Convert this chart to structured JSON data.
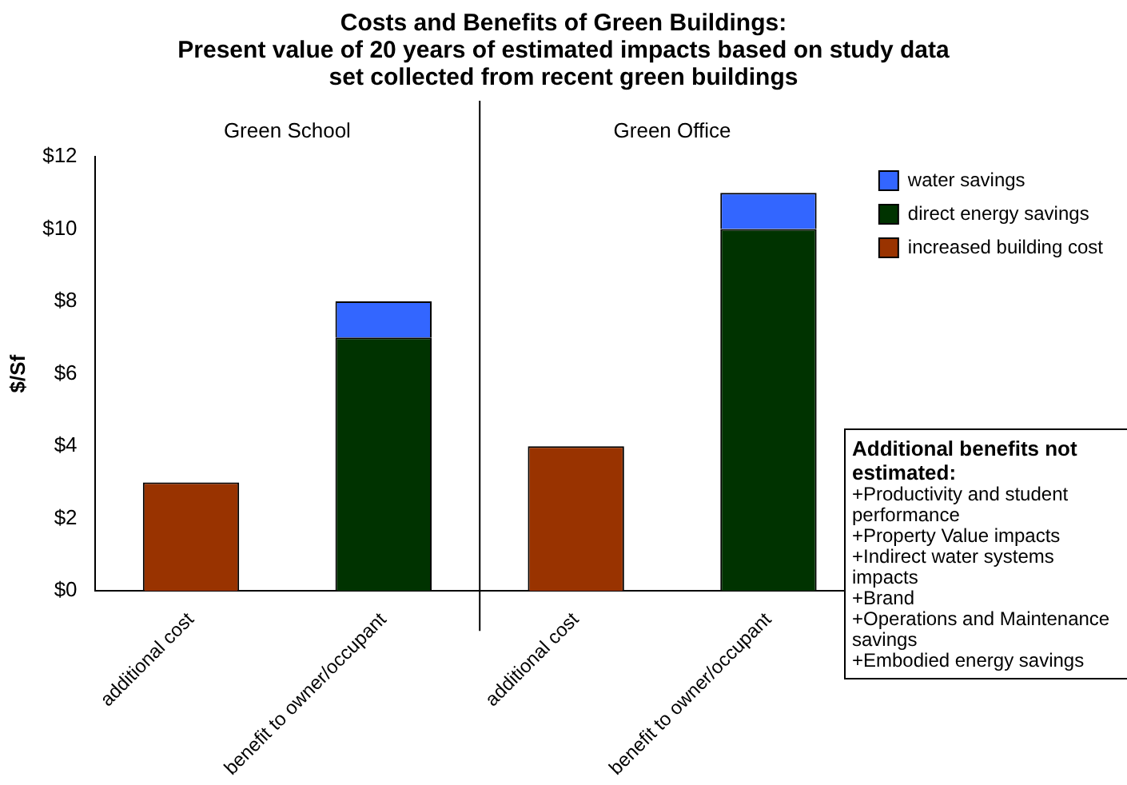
{
  "chart_data": {
    "type": "bar",
    "title": [
      "Costs and Benefits of Green Buildings:",
      "Present value of 20 years of estimated impacts based on study data",
      "set collected from recent green buildings"
    ],
    "ylabel": "$/Sf",
    "categories": [
      "additional cost",
      "benefit to owner/occupant",
      "additional cost",
      "benefit to owner/occupant"
    ],
    "series": [
      {
        "name": "increased building cost",
        "color": "#993300",
        "values": [
          3,
          null,
          4,
          null
        ]
      },
      {
        "name": "direct energy savings",
        "color": "#003300",
        "values": [
          null,
          7,
          null,
          10
        ]
      },
      {
        "name": "water savings",
        "color": "#3366ff",
        "values": [
          null,
          1,
          null,
          1
        ]
      }
    ],
    "stacked": true,
    "ylim": [
      0,
      12
    ],
    "yticks": [
      {
        "value": 0,
        "label": "$0"
      },
      {
        "value": 2,
        "label": "$2"
      },
      {
        "value": 4,
        "label": "$4"
      },
      {
        "value": 6,
        "label": "$6"
      },
      {
        "value": 8,
        "label": "$8"
      },
      {
        "value": 10,
        "label": "$10"
      },
      {
        "value": 12,
        "label": "$12"
      }
    ],
    "grid": false,
    "legend": "top right",
    "annotations": [
      "Green School",
      "Green Office",
      "Additional benefits not estimated:",
      "+Productivity and student performance",
      "+Property Value impacts",
      "+Indirect water systems impacts",
      "+Brand",
      "+Operations and Maintenance savings",
      "+Embodied energy savings"
    ]
  }
}
